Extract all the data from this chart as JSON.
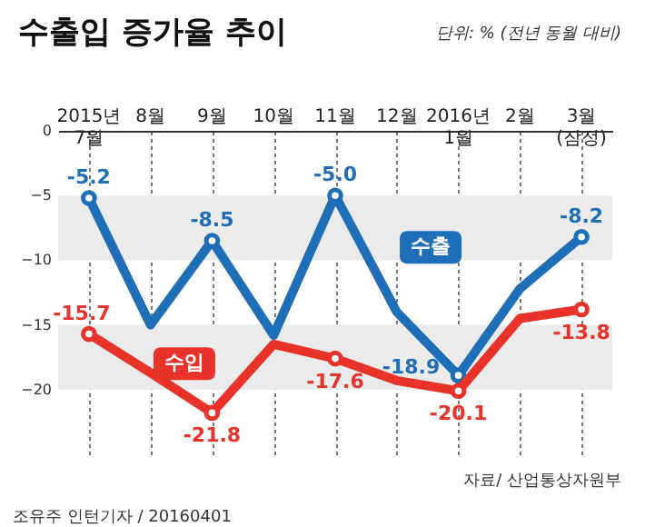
{
  "chart_data": {
    "type": "line",
    "title": "수출입 증가율 추이",
    "subtitle": "단위: % (전년 동월 대비)",
    "categories": [
      "2015년\n7월",
      "8월",
      "9월",
      "10월",
      "11월",
      "12월",
      "2016년\n1월",
      "2월",
      "3월\n(잠정)"
    ],
    "series": [
      {
        "name": "수출",
        "color": "#1f6fb8",
        "values": [
          -5.2,
          -15.0,
          -8.5,
          -15.8,
          -5.0,
          -14.0,
          -18.9,
          -12.2,
          -8.2
        ],
        "value_labels": [
          "-5.2",
          null,
          "-8.5",
          null,
          "-5.0",
          null,
          "-18.9",
          null,
          "-8.2"
        ]
      },
      {
        "name": "수입",
        "color": "#e8322a",
        "values": [
          -15.7,
          -18.7,
          -21.8,
          -16.5,
          -17.6,
          -19.3,
          -20.1,
          -14.5,
          -13.8
        ],
        "value_labels": [
          "-15.7",
          null,
          "-21.8",
          null,
          "-17.6",
          null,
          "-20.1",
          null,
          "-13.8"
        ]
      }
    ],
    "ylim": [
      -25,
      0
    ],
    "yticks": [
      0,
      -5,
      -10,
      -15,
      -20
    ],
    "bands": [
      {
        "axis": "y",
        "from": -10,
        "to": -5,
        "color": "#ebebeb"
      },
      {
        "axis": "y",
        "from": -20,
        "to": -15,
        "color": "#ebebeb"
      }
    ],
    "grid": "x",
    "line_style": "solid",
    "marker": "circle",
    "annotations": [
      "자료/ 산업통상자원부",
      "조유주 인턴기자 / 20160401"
    ]
  }
}
